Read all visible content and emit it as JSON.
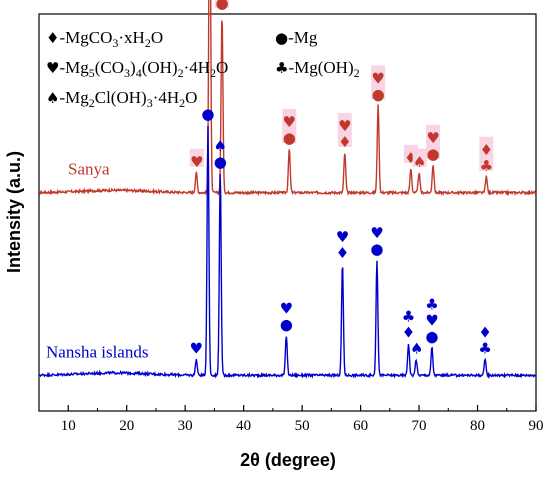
{
  "chart_data": {
    "type": "line",
    "xlabel": "2θ (degree)",
    "ylabel": "Intensity (a.u.)",
    "xlim": [
      5,
      90
    ],
    "xticks": [
      10,
      20,
      30,
      40,
      50,
      60,
      70,
      80,
      90
    ],
    "yticks_shown": false,
    "legend": {
      "placement": "top-left",
      "entries": [
        {
          "symbol": "diamond",
          "glyph": "♦",
          "label_prefix": "-MgCO",
          "sub": "3",
          "label_suffix": "·xH",
          "sub2": "2",
          "label_end": "O",
          "text": "-MgCO3·xH2O"
        },
        {
          "symbol": "circle",
          "glyph": "●",
          "text": "-Mg"
        },
        {
          "symbol": "heart",
          "glyph": "♥",
          "text": "-Mg5(CO3)4(OH)2·4H2O"
        },
        {
          "symbol": "club",
          "glyph": "♣",
          "text": "-Mg(OH)2"
        },
        {
          "symbol": "spade",
          "glyph": "♠",
          "text": "-Mg2Cl(OH)3·4H2O"
        }
      ]
    },
    "series": [
      {
        "name": "Sanya",
        "color": "#c0392b",
        "baseline": 0.55,
        "peaks": [
          {
            "x": 31.9,
            "h": 0.05
          },
          {
            "x": 34.2,
            "h": 0.85
          },
          {
            "x": 36.3,
            "h": 0.45
          },
          {
            "x": 47.8,
            "h": 0.11
          },
          {
            "x": 57.3,
            "h": 0.1
          },
          {
            "x": 63.0,
            "h": 0.22
          },
          {
            "x": 68.6,
            "h": 0.06
          },
          {
            "x": 70.0,
            "h": 0.05
          },
          {
            "x": 72.4,
            "h": 0.07
          },
          {
            "x": 81.5,
            "h": 0.04
          }
        ],
        "markers": [
          {
            "x": 32.0,
            "glyphs": [
              "♥"
            ]
          },
          {
            "x": 34.2,
            "glyphs": [
              "●"
            ]
          },
          {
            "x": 36.3,
            "glyphs": [
              "♠",
              "●"
            ]
          },
          {
            "x": 47.8,
            "glyphs": [
              "♥",
              "●"
            ]
          },
          {
            "x": 57.3,
            "glyphs": [
              "♥",
              "♦"
            ]
          },
          {
            "x": 63.0,
            "glyphs": [
              "♥",
              "●"
            ]
          },
          {
            "x": 68.6,
            "glyphs": [
              "♦"
            ]
          },
          {
            "x": 70.1,
            "glyphs": [
              "♠"
            ]
          },
          {
            "x": 72.4,
            "glyphs": [
              "♥",
              "●"
            ]
          },
          {
            "x": 81.5,
            "glyphs": [
              "♦",
              "♣"
            ]
          }
        ]
      },
      {
        "name": "Nansha islands",
        "color": "#0000cc",
        "baseline": 0.09,
        "peaks": [
          {
            "x": 31.9,
            "h": 0.04
          },
          {
            "x": 33.9,
            "h": 0.63
          },
          {
            "x": 36.0,
            "h": 0.51
          },
          {
            "x": 47.3,
            "h": 0.1
          },
          {
            "x": 56.9,
            "h": 0.28
          },
          {
            "x": 62.8,
            "h": 0.29
          },
          {
            "x": 68.2,
            "h": 0.08
          },
          {
            "x": 69.5,
            "h": 0.04
          },
          {
            "x": 72.2,
            "h": 0.07
          },
          {
            "x": 81.3,
            "h": 0.04
          }
        ],
        "markers": [
          {
            "x": 31.9,
            "glyphs": [
              "♥"
            ]
          },
          {
            "x": 33.9,
            "glyphs": [
              "●"
            ]
          },
          {
            "x": 36.0,
            "glyphs": [
              "♠",
              "●"
            ]
          },
          {
            "x": 47.3,
            "glyphs": [
              "♥",
              "●"
            ]
          },
          {
            "x": 56.9,
            "glyphs": [
              "♥",
              "♦"
            ]
          },
          {
            "x": 62.8,
            "glyphs": [
              "♥",
              "●"
            ]
          },
          {
            "x": 68.2,
            "glyphs": [
              "♣",
              "♦"
            ]
          },
          {
            "x": 69.6,
            "glyphs": [
              "♠"
            ]
          },
          {
            "x": 72.2,
            "glyphs": [
              "♣",
              "♥",
              "●"
            ]
          },
          {
            "x": 81.3,
            "glyphs": [
              "♦",
              "♣"
            ]
          }
        ]
      }
    ]
  }
}
